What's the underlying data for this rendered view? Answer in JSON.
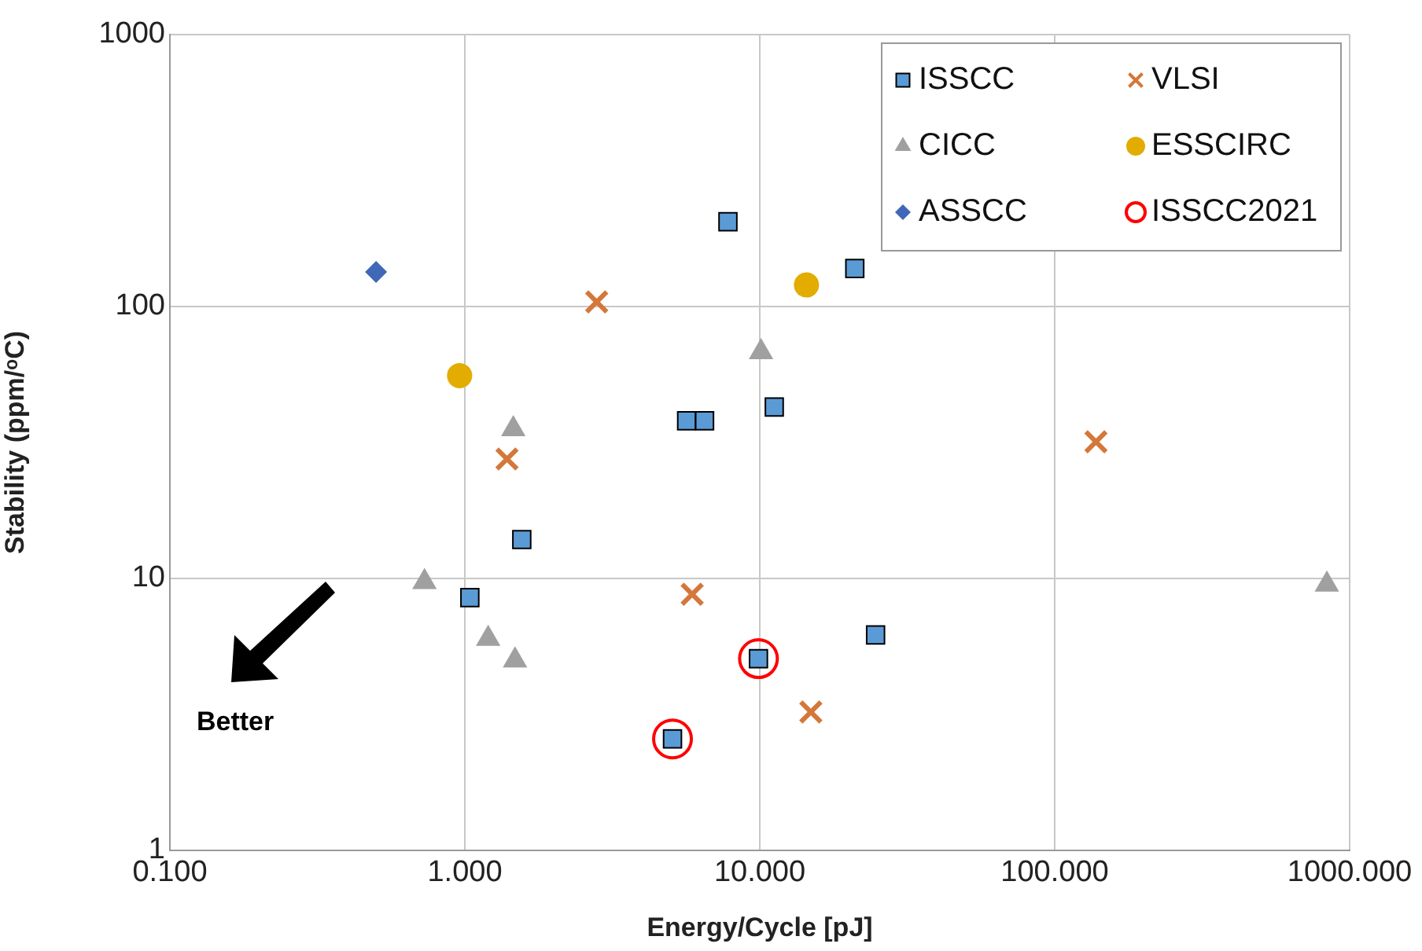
{
  "chart_data": {
    "type": "scatter",
    "xlabel": "Energy/Cycle [pJ]",
    "ylabel": "Stability (ppm/ᵒC)",
    "log": "xy",
    "grid": true,
    "legend": "top right",
    "xlim": [
      0.1,
      1000
    ],
    "xticks": [
      {
        "value": 0.1,
        "label": "0.100"
      },
      {
        "value": 1,
        "label": "1.000"
      },
      {
        "value": 10,
        "label": "10.000"
      },
      {
        "value": 100,
        "label": "100.000"
      },
      {
        "value": 1000,
        "label": "1000.000"
      }
    ],
    "ylim": [
      1,
      1000
    ],
    "yticks": [
      1,
      10,
      100,
      1000
    ],
    "annotations": [
      "Better"
    ],
    "series": [
      {
        "name": "ISSCC",
        "color": "#5b9bd5",
        "marker": "square",
        "x": [
          7.8,
          21,
          5.65,
          6.5,
          11.2,
          1.56,
          1.04,
          24.7,
          9.9,
          5.06
        ],
        "values": [
          205,
          138,
          38,
          38,
          42.7,
          13.9,
          8.5,
          6.2,
          5.07,
          2.57
        ]
      },
      {
        "name": "VLSI",
        "color": "#d4773a",
        "marker": "cross",
        "x": [
          2.8,
          1.39,
          5.9,
          14.9,
          138
        ],
        "values": [
          104,
          27.5,
          8.75,
          3.23,
          31.8
        ]
      },
      {
        "name": "CICC",
        "color": "#a0a0a0",
        "marker": "triangle",
        "x": [
          1.46,
          10.1,
          0.73,
          1.2,
          1.48,
          837
        ],
        "values": [
          35.4,
          68,
          9.7,
          6.0,
          5.0,
          9.5
        ]
      },
      {
        "name": "ESSCIRC",
        "color": "#e3ac00",
        "marker": "circle",
        "x": [
          0.96,
          14.4
        ],
        "values": [
          55.7,
          120
        ]
      },
      {
        "name": "ASSCC",
        "color": "#4068b8",
        "marker": "diamond",
        "x": [
          0.5
        ],
        "values": [
          134
        ]
      },
      {
        "name": "ISSCC2021",
        "color": "#ff0000",
        "marker": "circle",
        "x": [
          9.9,
          5.06
        ],
        "values": [
          5.07,
          2.57
        ]
      }
    ]
  }
}
